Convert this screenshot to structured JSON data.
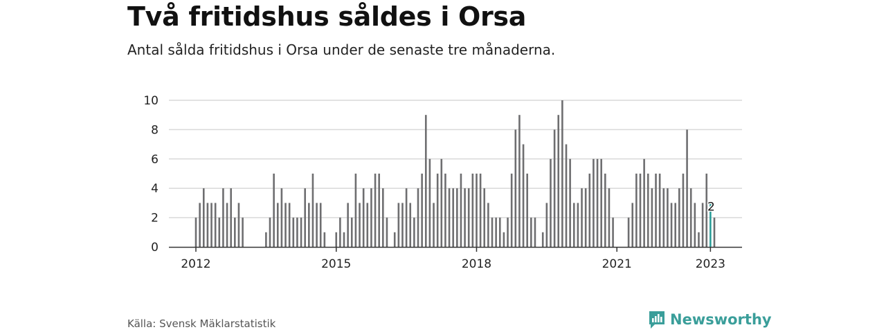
{
  "header": {
    "title": "Två fritidshus såldes i Orsa",
    "subtitle": "Antal sålda fritidshus i Orsa under de senaste tre månaderna."
  },
  "footer": {
    "source": "Källa: Svensk Mäklarstatistik",
    "brand": "Newsworthy"
  },
  "colors": {
    "bar": "#6e6e70",
    "highlight": "#2a9d99",
    "grid": "#d9d9d9",
    "brand": "#3a9e9a"
  },
  "chart_data": {
    "type": "bar",
    "title": "Två fritidshus såldes i Orsa",
    "subtitle": "Antal sålda fritidshus i Orsa under de senaste tre månaderna.",
    "start": "2012-01",
    "end": "2023-01",
    "x_ticks": [
      "2012",
      "2015",
      "2018",
      "2021",
      "2023"
    ],
    "y_ticks": [
      0,
      2,
      4,
      6,
      8,
      10
    ],
    "ylim": [
      0,
      10
    ],
    "grid": true,
    "values": [
      2,
      3,
      4,
      3,
      3,
      3,
      2,
      4,
      3,
      4,
      2,
      3,
      2,
      null,
      null,
      null,
      null,
      null,
      1,
      2,
      5,
      3,
      4,
      3,
      3,
      2,
      2,
      2,
      4,
      3,
      5,
      3,
      3,
      1,
      null,
      null,
      1,
      2,
      1,
      3,
      2,
      5,
      3,
      4,
      3,
      4,
      5,
      5,
      4,
      2,
      null,
      1,
      3,
      3,
      4,
      3,
      2,
      4,
      5,
      9,
      6,
      3,
      5,
      6,
      5,
      4,
      4,
      4,
      5,
      4,
      4,
      5,
      5,
      5,
      4,
      3,
      2,
      2,
      2,
      1,
      2,
      5,
      8,
      9,
      7,
      5,
      2,
      2,
      null,
      1,
      3,
      6,
      8,
      9,
      10,
      7,
      6,
      3,
      3,
      4,
      4,
      5,
      6,
      6,
      6,
      5,
      4,
      2,
      null,
      null,
      null,
      2,
      3,
      5,
      5,
      6,
      5,
      4,
      5,
      5,
      4,
      4,
      3,
      3,
      4,
      5,
      8,
      4,
      3,
      1,
      3,
      5,
      3,
      2
    ],
    "highlight": {
      "month": "2023-01",
      "value": 2,
      "label": "2"
    }
  }
}
